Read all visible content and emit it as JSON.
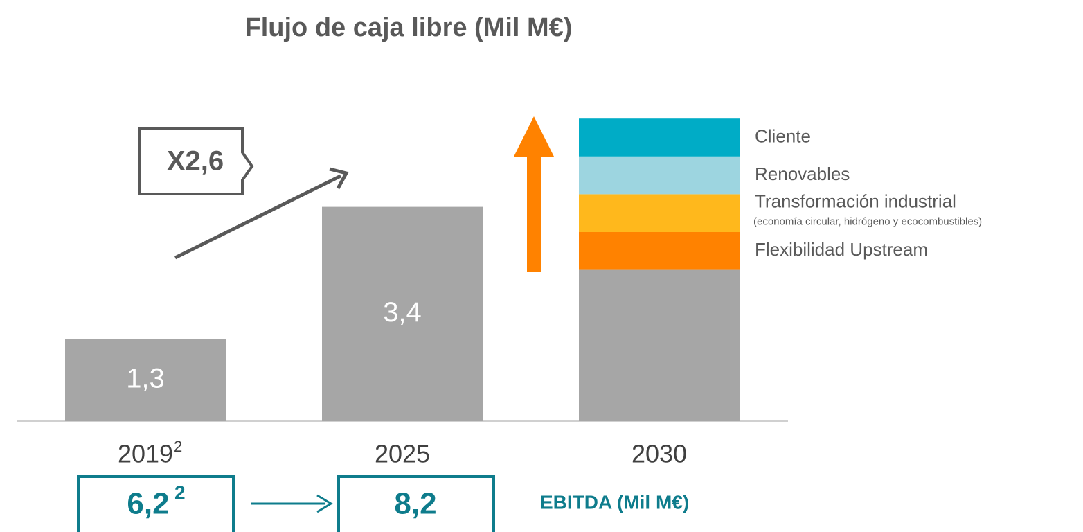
{
  "chart_data": {
    "type": "bar",
    "title": "Flujo de caja libre (Mil M€)",
    "categories": [
      "2019",
      "2025",
      "2030"
    ],
    "category_superscripts": [
      "2",
      null,
      null
    ],
    "series": [
      {
        "color": "#a6a6a6",
        "values": [
          1.3,
          3.4,
          2.4
        ],
        "value_labels": [
          "1,3",
          "3,4",
          null
        ]
      },
      {
        "name": "Flexibilidad Upstream",
        "color": "#ff8200",
        "values": [
          null,
          null,
          0.6
        ]
      },
      {
        "name": "Transformación industrial",
        "subtitle": "(economía circular, hidrógeno y ecocombustibles)",
        "color": "#ffb81c",
        "values": [
          null,
          null,
          0.6
        ]
      },
      {
        "name": "Renovables",
        "color": "#9dd5e0",
        "values": [
          null,
          null,
          0.6
        ]
      },
      {
        "name": "Cliente",
        "color": "#00acc6",
        "values": [
          null,
          null,
          0.6
        ]
      }
    ],
    "ylim": [
      0,
      5
    ],
    "annotations": {
      "multiplier": "X2,6"
    },
    "ebitda": {
      "label": "EBITDA (Mil M€)",
      "boxes": [
        {
          "text": "6,2",
          "sup": "2"
        },
        {
          "text": "8,2"
        }
      ]
    }
  }
}
